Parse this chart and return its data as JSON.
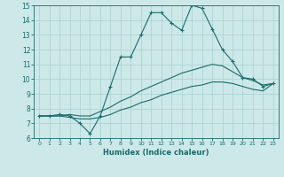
{
  "xlabel": "Humidex (Indice chaleur)",
  "xlim": [
    -0.5,
    23.5
  ],
  "ylim": [
    6,
    15
  ],
  "xticks": [
    0,
    1,
    2,
    3,
    4,
    5,
    6,
    7,
    8,
    9,
    10,
    11,
    12,
    13,
    14,
    15,
    16,
    17,
    18,
    19,
    20,
    21,
    22,
    23
  ],
  "yticks": [
    6,
    7,
    8,
    9,
    10,
    11,
    12,
    13,
    14,
    15
  ],
  "background_color": "#cce8e8",
  "line_color": "#1a6b6b",
  "grid_color": "#aacfcf",
  "line1_x": [
    0,
    1,
    2,
    3,
    4,
    5,
    6,
    7,
    8,
    9,
    10,
    11,
    12,
    13,
    14,
    15,
    16,
    17,
    18,
    19,
    20,
    21,
    22,
    23
  ],
  "line1_y": [
    7.5,
    7.5,
    7.6,
    7.5,
    7.0,
    6.3,
    7.5,
    9.5,
    11.5,
    11.5,
    13.0,
    14.5,
    14.5,
    13.8,
    13.3,
    15.0,
    14.8,
    13.4,
    12.0,
    11.2,
    10.1,
    10.0,
    9.5,
    9.7
  ],
  "line2_x": [
    0,
    1,
    2,
    3,
    4,
    5,
    6,
    7,
    8,
    9,
    10,
    11,
    12,
    13,
    14,
    15,
    16,
    17,
    18,
    19,
    20,
    21,
    22,
    23
  ],
  "line2_y": [
    7.5,
    7.5,
    7.5,
    7.6,
    7.5,
    7.5,
    7.8,
    8.1,
    8.5,
    8.8,
    9.2,
    9.5,
    9.8,
    10.1,
    10.4,
    10.6,
    10.8,
    11.0,
    10.9,
    10.5,
    10.1,
    9.9,
    9.6,
    9.7
  ],
  "line3_x": [
    0,
    1,
    2,
    3,
    4,
    5,
    6,
    7,
    8,
    9,
    10,
    11,
    12,
    13,
    14,
    15,
    16,
    17,
    18,
    19,
    20,
    21,
    22,
    23
  ],
  "line3_y": [
    7.5,
    7.5,
    7.5,
    7.4,
    7.3,
    7.3,
    7.4,
    7.6,
    7.9,
    8.1,
    8.4,
    8.6,
    8.9,
    9.1,
    9.3,
    9.5,
    9.6,
    9.8,
    9.8,
    9.7,
    9.5,
    9.3,
    9.2,
    9.7
  ]
}
